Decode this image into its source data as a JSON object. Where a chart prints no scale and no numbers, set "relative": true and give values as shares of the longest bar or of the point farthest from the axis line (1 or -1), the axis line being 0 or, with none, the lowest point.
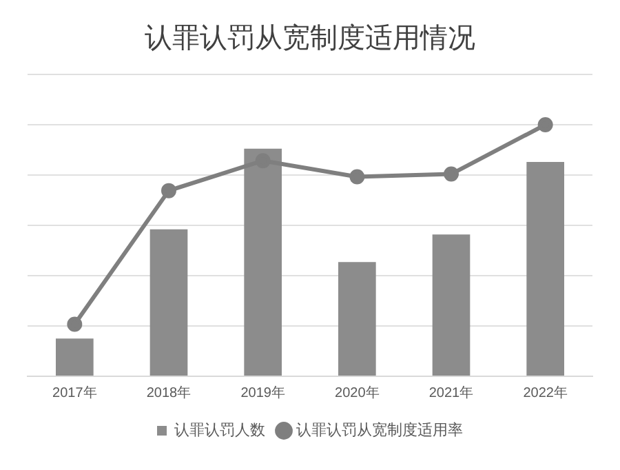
{
  "chart_data": {
    "type": "bar",
    "title": "认罪认罚从宽制度适用情况",
    "relative": true,
    "grid": "y",
    "legend": "bottom",
    "marker": "circle",
    "categories": [
      "2017年",
      "2018年",
      "2019年",
      "2020年",
      "2021年",
      "2022年"
    ],
    "series": [
      {
        "name": "认罪认罚人数",
        "color": "#8c8c8c",
        "values": [
          0.15,
          0.584,
          0.905,
          0.454,
          0.564,
          0.852
        ]
      },
      {
        "name": "认罪认罚从宽制度适用率",
        "type": "line",
        "color": "#7f7f7f",
        "values": [
          0.207,
          0.738,
          0.857,
          0.793,
          0.804,
          1
        ]
      }
    ]
  }
}
